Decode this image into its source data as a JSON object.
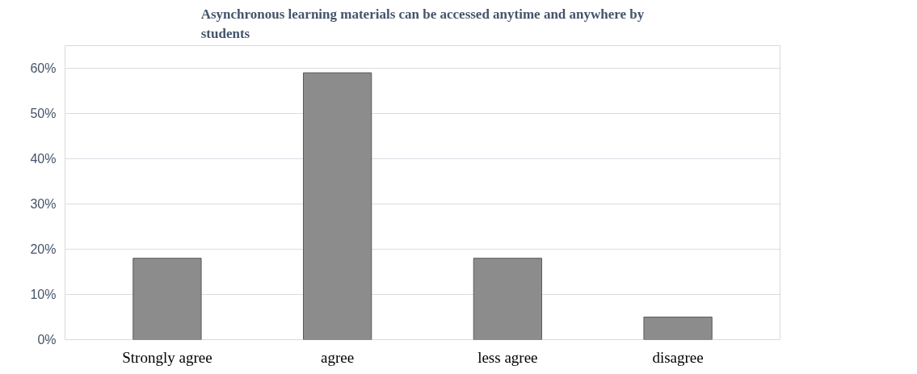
{
  "chart_data": {
    "type": "bar",
    "title": "Asynchronous learning materials can be accessed anytime and anywhere by students",
    "categories": [
      "Strongly agree",
      "agree",
      "less agree",
      "disagree"
    ],
    "values": [
      0.18,
      0.59,
      0.18,
      0.05
    ],
    "color": "#8c8c8c",
    "ylim": [
      0,
      0.65
    ],
    "yticks": [
      {
        "value": 0,
        "label": "0%"
      },
      {
        "value": 0.1,
        "label": "10%"
      },
      {
        "value": 0.2,
        "label": "20%"
      },
      {
        "value": 0.3,
        "label": "30%"
      },
      {
        "value": 0.4,
        "label": "40%"
      },
      {
        "value": 0.5,
        "label": "50%"
      },
      {
        "value": 0.6,
        "label": "60%"
      }
    ],
    "grid": "y"
  }
}
